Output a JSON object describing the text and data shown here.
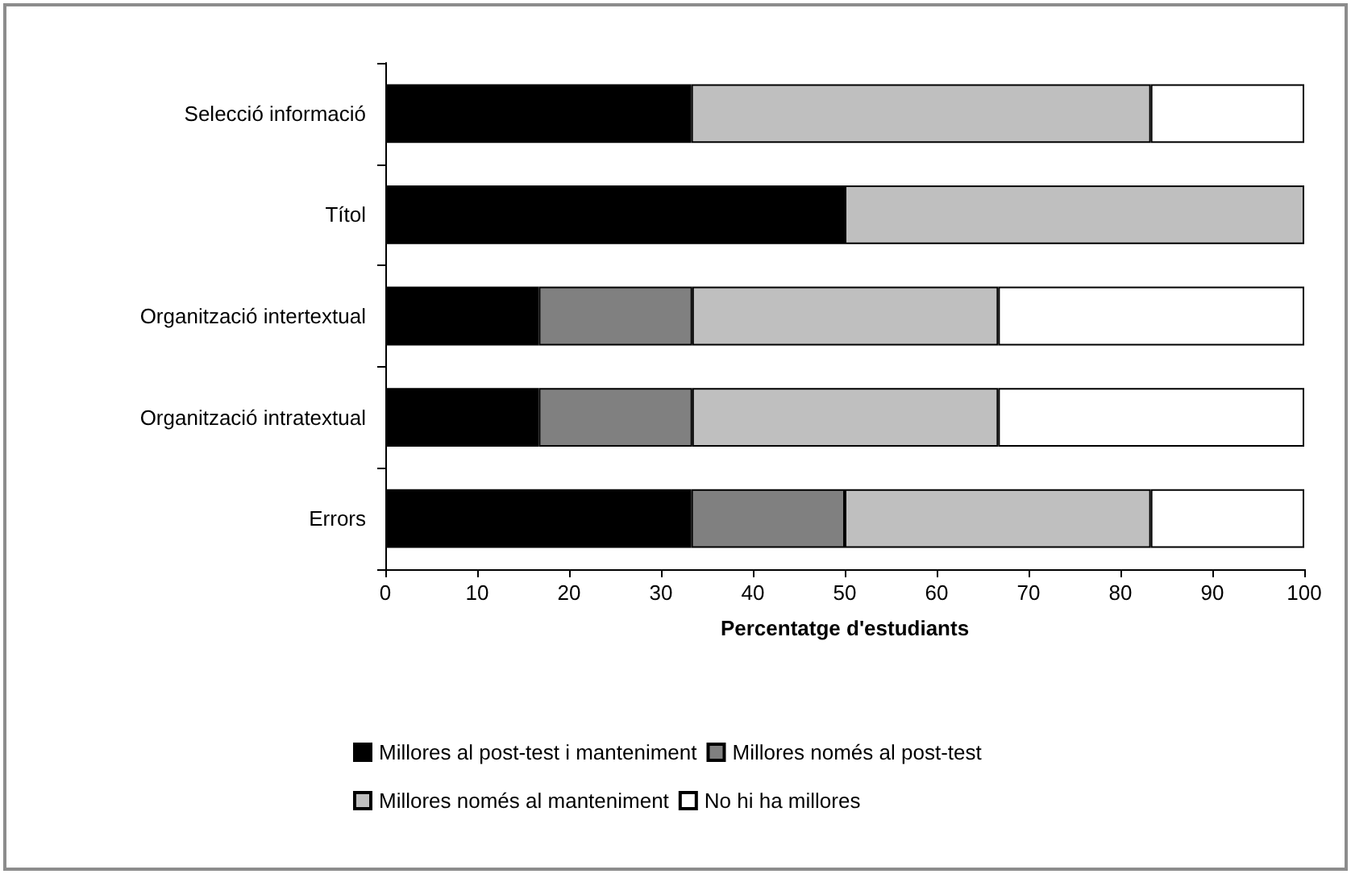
{
  "chart_data": {
    "type": "bar",
    "orientation": "horizontal",
    "stacked": true,
    "xlabel": "Percentatge d'estudiants",
    "categories": [
      "Selecció informació",
      "Títol",
      "Organització intertextual",
      "Organització intratextual",
      "Errors"
    ],
    "series": [
      {
        "name": "Millores al post-test i manteniment",
        "color": "#000000",
        "values": [
          33.3,
          50,
          16.7,
          16.7,
          33.3
        ]
      },
      {
        "name": "Millores només al post-test",
        "color": "#808080",
        "values": [
          0,
          0,
          16.7,
          16.7,
          16.7
        ]
      },
      {
        "name": "Millores només al manteniment",
        "color": "#bfbfbf",
        "values": [
          50,
          50,
          33.3,
          33.3,
          33.3
        ]
      },
      {
        "name": "No hi ha millores",
        "color": "#ffffff",
        "values": [
          16.7,
          0,
          33.3,
          33.3,
          16.7
        ]
      }
    ],
    "xlim": [
      0,
      100
    ],
    "xticks": [
      0,
      10,
      20,
      30,
      40,
      50,
      60,
      70,
      80,
      90,
      100
    ],
    "grid": false,
    "legend": "bottom"
  }
}
